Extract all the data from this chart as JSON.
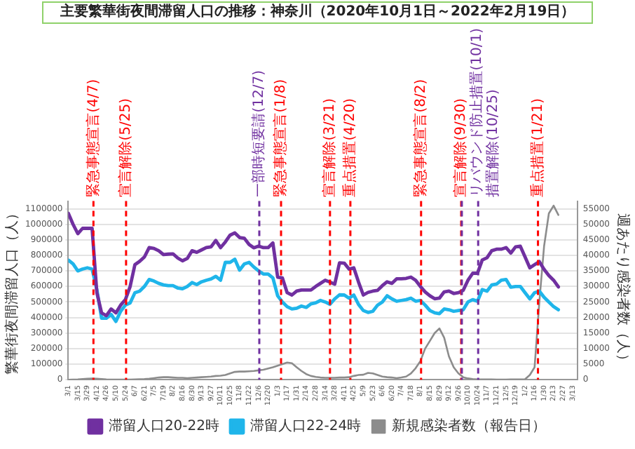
{
  "chart_data": {
    "type": "line",
    "title": "主要繁華街夜間滞留人口の推移：神奈川（2020年10月1日～2022年2月19日）",
    "ylabel": "繁華街夜間滞留人口（人）",
    "y2label": "週あたり感染者数（人）",
    "x": [
      "2020-03-01",
      "2020-03-08",
      "2020-03-15",
      "2020-03-22",
      "2020-03-29",
      "2020-04-05",
      "2020-04-12",
      "2020-04-19",
      "2020-04-26",
      "2020-05-03",
      "2020-05-10",
      "2020-05-17",
      "2020-05-24",
      "2020-05-31",
      "2020-06-07",
      "2020-06-14",
      "2020-06-21",
      "2020-06-28",
      "2020-07-05",
      "2020-07-12",
      "2020-07-19",
      "2020-07-26",
      "2020-08-02",
      "2020-08-09",
      "2020-08-16",
      "2020-08-23",
      "2020-08-30",
      "2020-09-06",
      "2020-09-13",
      "2020-09-20",
      "2020-09-27",
      "2020-10-04",
      "2020-10-11",
      "2020-10-18",
      "2020-10-25",
      "2020-11-01",
      "2020-11-08",
      "2020-11-15",
      "2020-11-22",
      "2020-11-29",
      "2020-12-06",
      "2020-12-13",
      "2020-12-20",
      "2020-12-27",
      "2021-01-03",
      "2021-01-10",
      "2021-01-17",
      "2021-01-24",
      "2021-01-31",
      "2021-02-07",
      "2021-02-14",
      "2021-02-21",
      "2021-02-28",
      "2021-03-07",
      "2021-03-14",
      "2021-03-21",
      "2021-03-28",
      "2021-04-04",
      "2021-04-11",
      "2021-04-18",
      "2021-04-25",
      "2021-05-02",
      "2021-05-09",
      "2021-05-16",
      "2021-05-23",
      "2021-05-30",
      "2021-06-06",
      "2021-06-13",
      "2021-06-20",
      "2021-06-27",
      "2021-07-04",
      "2021-07-11",
      "2021-07-18",
      "2021-07-25",
      "2021-08-01",
      "2021-08-08",
      "2021-08-15",
      "2021-08-22",
      "2021-08-29",
      "2021-09-05",
      "2021-09-12",
      "2021-09-19",
      "2021-09-26",
      "2021-10-03",
      "2021-10-10",
      "2021-10-17",
      "2021-10-24",
      "2021-10-31",
      "2021-11-07",
      "2021-11-14",
      "2021-11-21",
      "2021-11-28",
      "2021-12-05",
      "2021-12-12",
      "2021-12-19",
      "2021-12-26",
      "2022-01-02",
      "2022-01-09",
      "2022-01-16",
      "2022-01-23",
      "2022-01-30",
      "2022-02-06",
      "2022-02-13",
      "2022-02-20"
    ],
    "series": [
      {
        "name": "滞留人口20-22時",
        "color": "#7030a0",
        "values": [
          1071000,
          1000000,
          940000,
          974000,
          974000,
          974000,
          560000,
          430000,
          412000,
          455000,
          430000,
          480000,
          515000,
          600000,
          740000,
          762000,
          790000,
          850000,
          845000,
          830000,
          805000,
          808000,
          810000,
          783000,
          765000,
          780000,
          830000,
          820000,
          835000,
          850000,
          855000,
          896000,
          850000,
          886000,
          930000,
          945000,
          915000,
          910000,
          870000,
          849000,
          860000,
          850000,
          850000,
          880000,
          660000,
          655000,
          560000,
          545000,
          570000,
          577000,
          577000,
          577000,
          600000,
          620000,
          640000,
          628000,
          615000,
          752000,
          750000,
          712000,
          720000,
          628000,
          545000,
          562000,
          570000,
          575000,
          605000,
          630000,
          620000,
          649000,
          649000,
          652000,
          660000,
          640000,
          600000,
          565000,
          540000,
          521000,
          525000,
          565000,
          570000,
          555000,
          560000,
          575000,
          640000,
          685000,
          685000,
          770000,
          785000,
          830000,
          840000,
          840000,
          850000,
          815000,
          855000,
          859000,
          790000,
          720000,
          740000,
          760000,
          710000,
          670000,
          640000,
          597000
        ]
      },
      {
        "name": "滞留人口22-24時",
        "color": "#1fb5ea",
        "values": [
          770000,
          745000,
          700000,
          712000,
          720000,
          712000,
          580000,
          395000,
          395000,
          420000,
          375000,
          440000,
          480000,
          494000,
          560000,
          570000,
          600000,
          645000,
          635000,
          620000,
          610000,
          605000,
          605000,
          590000,
          585000,
          600000,
          625000,
          612000,
          630000,
          640000,
          648000,
          665000,
          640000,
          755000,
          755000,
          775000,
          705000,
          745000,
          755000,
          725000,
          700000,
          680000,
          680000,
          655000,
          540000,
          500000,
          470000,
          455000,
          460000,
          474000,
          465000,
          488000,
          495000,
          510000,
          500000,
          485000,
          520000,
          546000,
          545000,
          525000,
          545000,
          484000,
          445000,
          433000,
          440000,
          480000,
          500000,
          540000,
          520000,
          505000,
          510000,
          515000,
          525000,
          505000,
          510000,
          480000,
          445000,
          430000,
          425000,
          455000,
          450000,
          440000,
          445000,
          450000,
          500000,
          515000,
          505000,
          580000,
          570000,
          610000,
          615000,
          640000,
          645000,
          595000,
          600000,
          600000,
          560000,
          520000,
          560000,
          570000,
          530000,
          500000,
          470000,
          450000
        ]
      },
      {
        "name": "新規感染者数（報告日）",
        "color": "#8c8c8c",
        "axis": "y2",
        "values": [
          0,
          50,
          100,
          200,
          300,
          350,
          300,
          200,
          100,
          50,
          30,
          20,
          20,
          50,
          100,
          150,
          200,
          300,
          500,
          700,
          800,
          800,
          700,
          600,
          600,
          500,
          600,
          700,
          800,
          900,
          1000,
          1200,
          1300,
          1500,
          2000,
          2500,
          2600,
          2600,
          2700,
          2800,
          3000,
          3200,
          3600,
          4000,
          4500,
          5000,
          5500,
          5300,
          4000,
          2800,
          1800,
          1200,
          900,
          700,
          600,
          600,
          600,
          700,
          700,
          800,
          1200,
          1500,
          1600,
          2200,
          2000,
          1500,
          1000,
          800,
          700,
          500,
          700,
          1000,
          2000,
          3700,
          6000,
          10000,
          12500,
          15000,
          16500,
          13500,
          7500,
          4000,
          2000,
          800,
          400,
          200,
          100,
          100,
          80,
          60,
          50,
          50,
          50,
          60,
          80,
          100,
          150,
          1500,
          4000,
          25000,
          43000,
          53500,
          56000,
          53000
        ]
      }
    ],
    "xlim": [
      "2020-03-01",
      "2022-03-20"
    ],
    "xticks": [
      {
        "value": "2020-03-01",
        "label": "3/1"
      },
      {
        "value": "2020-03-15",
        "label": "3/15"
      },
      {
        "value": "2020-03-29",
        "label": "3/29"
      },
      {
        "value": "2020-04-12",
        "label": "4/12"
      },
      {
        "value": "2020-04-26",
        "label": "4/26"
      },
      {
        "value": "2020-05-10",
        "label": "5/10"
      },
      {
        "value": "2020-05-24",
        "label": "5/24"
      },
      {
        "value": "2020-06-07",
        "label": "6/7"
      },
      {
        "value": "2020-06-21",
        "label": "6/21"
      },
      {
        "value": "2020-07-05",
        "label": "7/5"
      },
      {
        "value": "2020-07-19",
        "label": "7/19"
      },
      {
        "value": "2020-08-02",
        "label": "8/2"
      },
      {
        "value": "2020-08-16",
        "label": "8/16"
      },
      {
        "value": "2020-08-30",
        "label": "8/30"
      },
      {
        "value": "2020-09-13",
        "label": "9/13"
      },
      {
        "value": "2020-09-27",
        "label": "9/27"
      },
      {
        "value": "2020-10-11",
        "label": "10/11"
      },
      {
        "value": "2020-10-25",
        "label": "10/25"
      },
      {
        "value": "2020-11-08",
        "label": "11/8"
      },
      {
        "value": "2020-11-22",
        "label": "11/22"
      },
      {
        "value": "2020-12-06",
        "label": "12/6"
      },
      {
        "value": "2020-12-20",
        "label": "12/20"
      },
      {
        "value": "2021-01-03",
        "label": "1/3"
      },
      {
        "value": "2021-01-17",
        "label": "1/17"
      },
      {
        "value": "2021-01-31",
        "label": "1/31"
      },
      {
        "value": "2021-02-14",
        "label": "2/14"
      },
      {
        "value": "2021-02-28",
        "label": "2/28"
      },
      {
        "value": "2021-03-14",
        "label": "3/14"
      },
      {
        "value": "2021-03-28",
        "label": "3/28"
      },
      {
        "value": "2021-04-11",
        "label": "4/11"
      },
      {
        "value": "2021-04-25",
        "label": "4/25"
      },
      {
        "value": "2021-05-09",
        "label": "5/9"
      },
      {
        "value": "2021-05-23",
        "label": "5/23"
      },
      {
        "value": "2021-06-06",
        "label": "6/6"
      },
      {
        "value": "2021-06-20",
        "label": "6/20"
      },
      {
        "value": "2021-07-04",
        "label": "7/4"
      },
      {
        "value": "2021-07-18",
        "label": "7/18"
      },
      {
        "value": "2021-08-01",
        "label": "8/1"
      },
      {
        "value": "2021-08-15",
        "label": "8/15"
      },
      {
        "value": "2021-08-29",
        "label": "8/29"
      },
      {
        "value": "2021-09-12",
        "label": "9/12"
      },
      {
        "value": "2021-09-26",
        "label": "9/26"
      },
      {
        "value": "2021-10-10",
        "label": "10/10"
      },
      {
        "value": "2021-10-24",
        "label": "10/24"
      },
      {
        "value": "2021-11-07",
        "label": "11/7"
      },
      {
        "value": "2021-11-21",
        "label": "11/21"
      },
      {
        "value": "2021-12-05",
        "label": "12/5"
      },
      {
        "value": "2021-12-19",
        "label": "12/19"
      },
      {
        "value": "2022-01-02",
        "label": "1/2"
      },
      {
        "value": "2022-01-16",
        "label": "1/16"
      },
      {
        "value": "2022-01-30",
        "label": "1/30"
      },
      {
        "value": "2022-02-13",
        "label": "2/13"
      },
      {
        "value": "2022-02-27",
        "label": "2/27"
      },
      {
        "value": "2022-03-13",
        "label": "3/13"
      }
    ],
    "ylim": [
      0,
      1150000
    ],
    "yticks": [
      0,
      100000,
      200000,
      300000,
      400000,
      500000,
      600000,
      700000,
      800000,
      900000,
      1000000,
      1100000
    ],
    "y2lim": [
      0,
      57500
    ],
    "y2ticks": [
      0,
      5000,
      10000,
      15000,
      20000,
      25000,
      30000,
      35000,
      40000,
      45000,
      50000,
      55000
    ],
    "ref_lines": [
      {
        "axis": "x",
        "value": "2020-04-07",
        "label": "緊急事態宣言(4/7)",
        "color": "#ff0000",
        "line_style": "dashed"
      },
      {
        "axis": "x",
        "value": "2020-05-25",
        "label": "宣言解除(5/25)",
        "color": "#ff0000",
        "line_style": "dashed"
      },
      {
        "axis": "x",
        "value": "2020-12-07",
        "label": "一部時短要請(12/7)",
        "color": "#7030a0",
        "line_style": "dashed"
      },
      {
        "axis": "x",
        "value": "2021-01-08",
        "label": "緊急事態宣言(1/8)",
        "color": "#ff0000",
        "line_style": "dashed"
      },
      {
        "axis": "x",
        "value": "2021-03-21",
        "label": "宣言解除(3/21)",
        "color": "#ff0000",
        "line_style": "dashed"
      },
      {
        "axis": "x",
        "value": "2021-04-20",
        "label": "重点措置(4/20)",
        "color": "#ff0000",
        "line_style": "dashed"
      },
      {
        "axis": "x",
        "value": "2021-08-02",
        "label": "緊急事態宣言(8/2)",
        "color": "#ff0000",
        "line_style": "dashed"
      },
      {
        "axis": "x",
        "value": "2021-09-30",
        "label": "宣言解除(9/30)",
        "color": "#ff0000",
        "line_style": "dashed"
      },
      {
        "axis": "x",
        "value": "2021-10-01",
        "label": "リバウンド防止措置(10/1)",
        "color": "#7030a0",
        "line_style": "dashed"
      },
      {
        "axis": "x",
        "value": "2021-10-25",
        "label": "措置解除(10/25)",
        "color": "#7030a0",
        "line_style": "dashed"
      },
      {
        "axis": "x",
        "value": "2022-01-21",
        "label": "重点措置(1/21)",
        "color": "#ff0000",
        "line_style": "dashed"
      }
    ],
    "legend": "bottom",
    "grid": "y"
  }
}
